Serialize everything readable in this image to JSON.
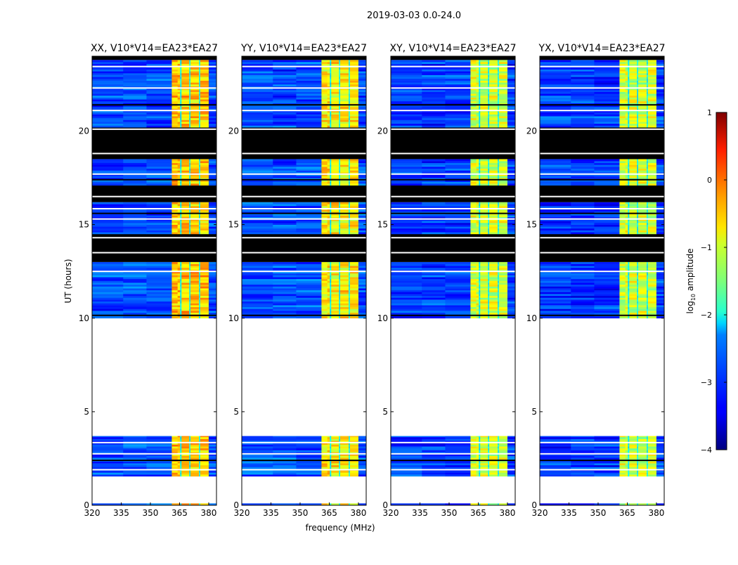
{
  "suptitle": "2019-03-03 0.0-24.0",
  "xlabel": "frequency (MHz)",
  "ylabel": "UT (hours)",
  "colorbar": {
    "label": "log10 amplitude",
    "label_main": "log",
    "label_sub": "10",
    "label_rest": " amplitude",
    "range": [
      -4,
      1
    ],
    "ticks": [
      1,
      0,
      -1,
      -2,
      -3,
      -4
    ],
    "tick_labels": [
      "1",
      "0",
      "−1",
      "−2",
      "−3",
      "−4"
    ],
    "colormap": "jet"
  },
  "chart_data": [
    {
      "type": "heatmap",
      "title": "XX, V10*V14=EA23*EA27",
      "xlim": [
        320,
        384
      ],
      "ylim": [
        0,
        24
      ],
      "xticks": [
        320,
        335,
        350,
        365,
        380
      ],
      "xtick_labels": [
        "320",
        "335",
        "350",
        "365",
        "380"
      ],
      "yticks": [
        0,
        5,
        10,
        15,
        20
      ],
      "ytick_labels": [
        "0",
        "5",
        "10",
        "15",
        "20"
      ],
      "background_level": -3.0,
      "band": [
        361,
        380
      ],
      "band_level": -0.6
    },
    {
      "type": "heatmap",
      "title": "YY, V10*V14=EA23*EA27",
      "xlim": [
        320,
        384
      ],
      "ylim": [
        0,
        24
      ],
      "xticks": [
        320,
        335,
        350,
        365,
        380
      ],
      "xtick_labels": [
        "320",
        "335",
        "350",
        "365",
        "380"
      ],
      "yticks": [
        0,
        5,
        10,
        15,
        20
      ],
      "ytick_labels": [
        "0",
        "5",
        "10",
        "15",
        "20"
      ],
      "background_level": -3.0,
      "band": [
        361,
        380
      ],
      "band_level": -0.8
    },
    {
      "type": "heatmap",
      "title": "XY, V10*V14=EA23*EA27",
      "xlim": [
        320,
        384
      ],
      "ylim": [
        0,
        24
      ],
      "xticks": [
        320,
        335,
        350,
        365,
        380
      ],
      "xtick_labels": [
        "320",
        "335",
        "350",
        "365",
        "380"
      ],
      "yticks": [
        0,
        5,
        10,
        15,
        20
      ],
      "ytick_labels": [
        "0",
        "5",
        "10",
        "15",
        "20"
      ],
      "background_level": -3.1,
      "band": [
        361,
        380
      ],
      "band_level": -1.1
    },
    {
      "type": "heatmap",
      "title": "YX, V10*V14=EA23*EA27",
      "xlim": [
        320,
        384
      ],
      "ylim": [
        0,
        24
      ],
      "xticks": [
        320,
        335,
        350,
        365,
        380
      ],
      "xtick_labels": [
        "320",
        "335",
        "350",
        "365",
        "380"
      ],
      "yticks": [
        0,
        5,
        10,
        15,
        20
      ],
      "ytick_labels": [
        "0",
        "5",
        "10",
        "15",
        "20"
      ],
      "background_level": -3.1,
      "band": [
        361,
        380
      ],
      "band_level": -1.1
    }
  ],
  "time_segments": [
    {
      "from": 0,
      "to": 0.1,
      "state": "data"
    },
    {
      "from": 0.1,
      "to": 1.55,
      "state": "blank"
    },
    {
      "from": 1.55,
      "to": 3.7,
      "state": "data"
    },
    {
      "from": 3.7,
      "to": 10.0,
      "state": "blank"
    },
    {
      "from": 10.0,
      "to": 13.0,
      "state": "data"
    },
    {
      "from": 13.0,
      "to": 14.5,
      "state": "flagged"
    },
    {
      "from": 14.5,
      "to": 16.2,
      "state": "data"
    },
    {
      "from": 16.2,
      "to": 17.1,
      "state": "flagged"
    },
    {
      "from": 17.1,
      "to": 18.5,
      "state": "data"
    },
    {
      "from": 18.5,
      "to": 20.2,
      "state": "flagged"
    },
    {
      "from": 20.2,
      "to": 23.8,
      "state": "data"
    },
    {
      "from": 23.8,
      "to": 24.0,
      "state": "flagged"
    }
  ],
  "gap_hours": [
    1.9,
    2.4,
    2.75,
    3.35,
    10.15,
    12.5,
    13.5,
    14.0,
    14.3,
    15.3,
    15.6,
    15.85,
    16.5,
    17.4,
    17.7,
    18.8,
    19.6,
    20.1,
    21.1,
    21.4,
    22.3,
    23.45
  ]
}
